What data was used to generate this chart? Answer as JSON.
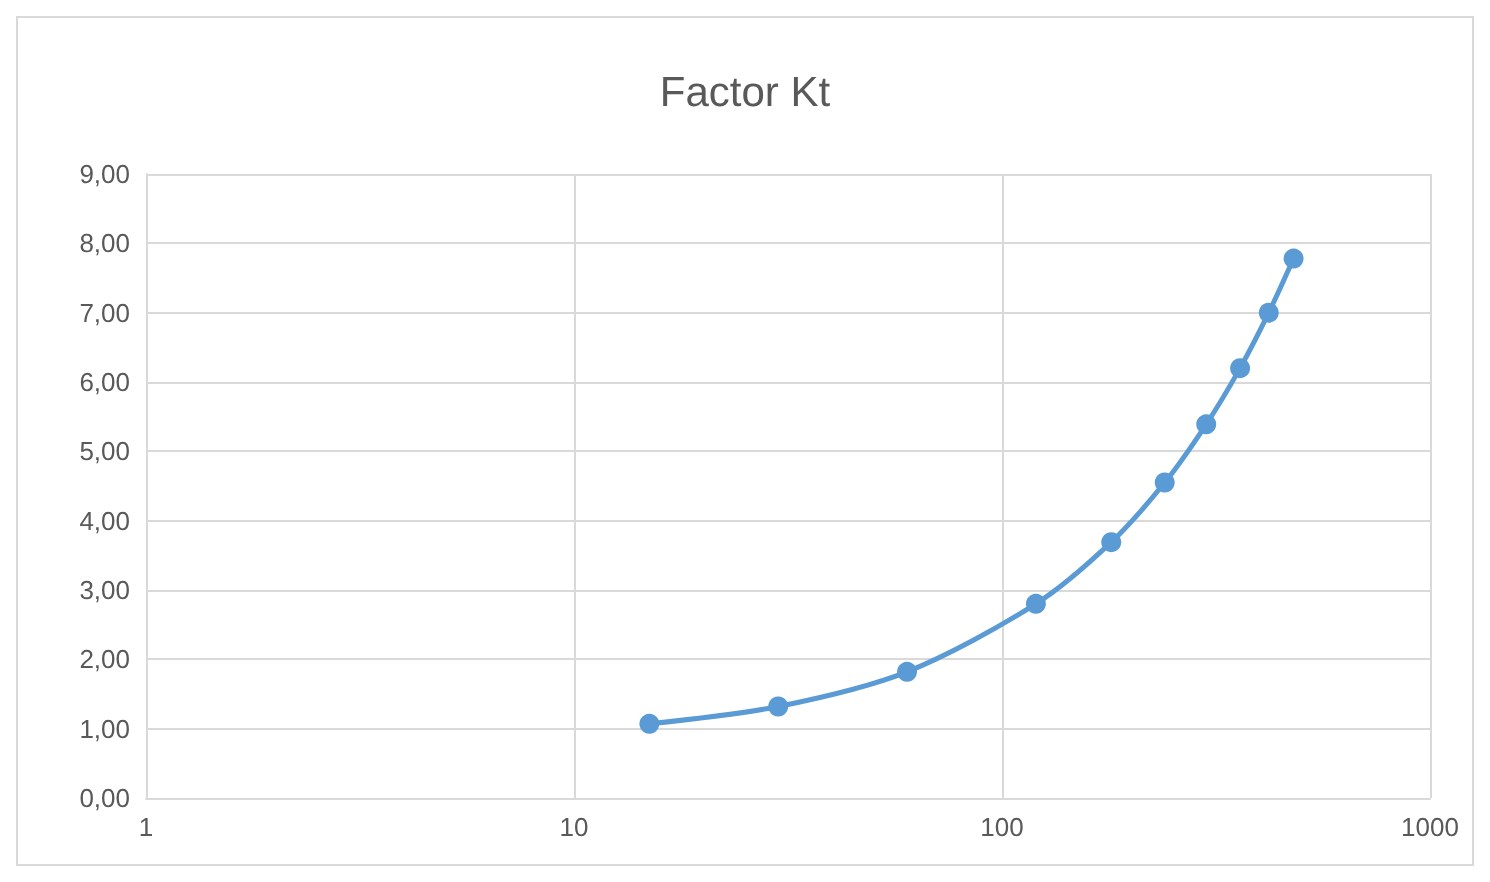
{
  "chart_data": {
    "type": "line",
    "title": "Factor Kt",
    "x": [
      15,
      30,
      60,
      120,
      180,
      240,
      300,
      360,
      420,
      480
    ],
    "series": [
      {
        "color": "#5b9bd5",
        "values": [
          1.07,
          1.32,
          1.82,
          2.8,
          3.69,
          4.55,
          5.39,
          6.2,
          7.0,
          7.78
        ]
      }
    ],
    "xlim": [
      1,
      1000
    ],
    "xticks": [
      1,
      10,
      100,
      1000
    ],
    "log": "x",
    "ylim": [
      0,
      9
    ],
    "yticks": [
      {
        "value": 0,
        "label": "0,00"
      },
      {
        "value": 1,
        "label": "1,00"
      },
      {
        "value": 2,
        "label": "2,00"
      },
      {
        "value": 3,
        "label": "3,00"
      },
      {
        "value": 4,
        "label": "4,00"
      },
      {
        "value": 5,
        "label": "5,00"
      },
      {
        "value": 6,
        "label": "6,00"
      },
      {
        "value": 7,
        "label": "7,00"
      },
      {
        "value": 8,
        "label": "8,00"
      },
      {
        "value": 9,
        "label": "9,00"
      }
    ],
    "grid": true,
    "marker": "circle",
    "line_style": "solid"
  }
}
